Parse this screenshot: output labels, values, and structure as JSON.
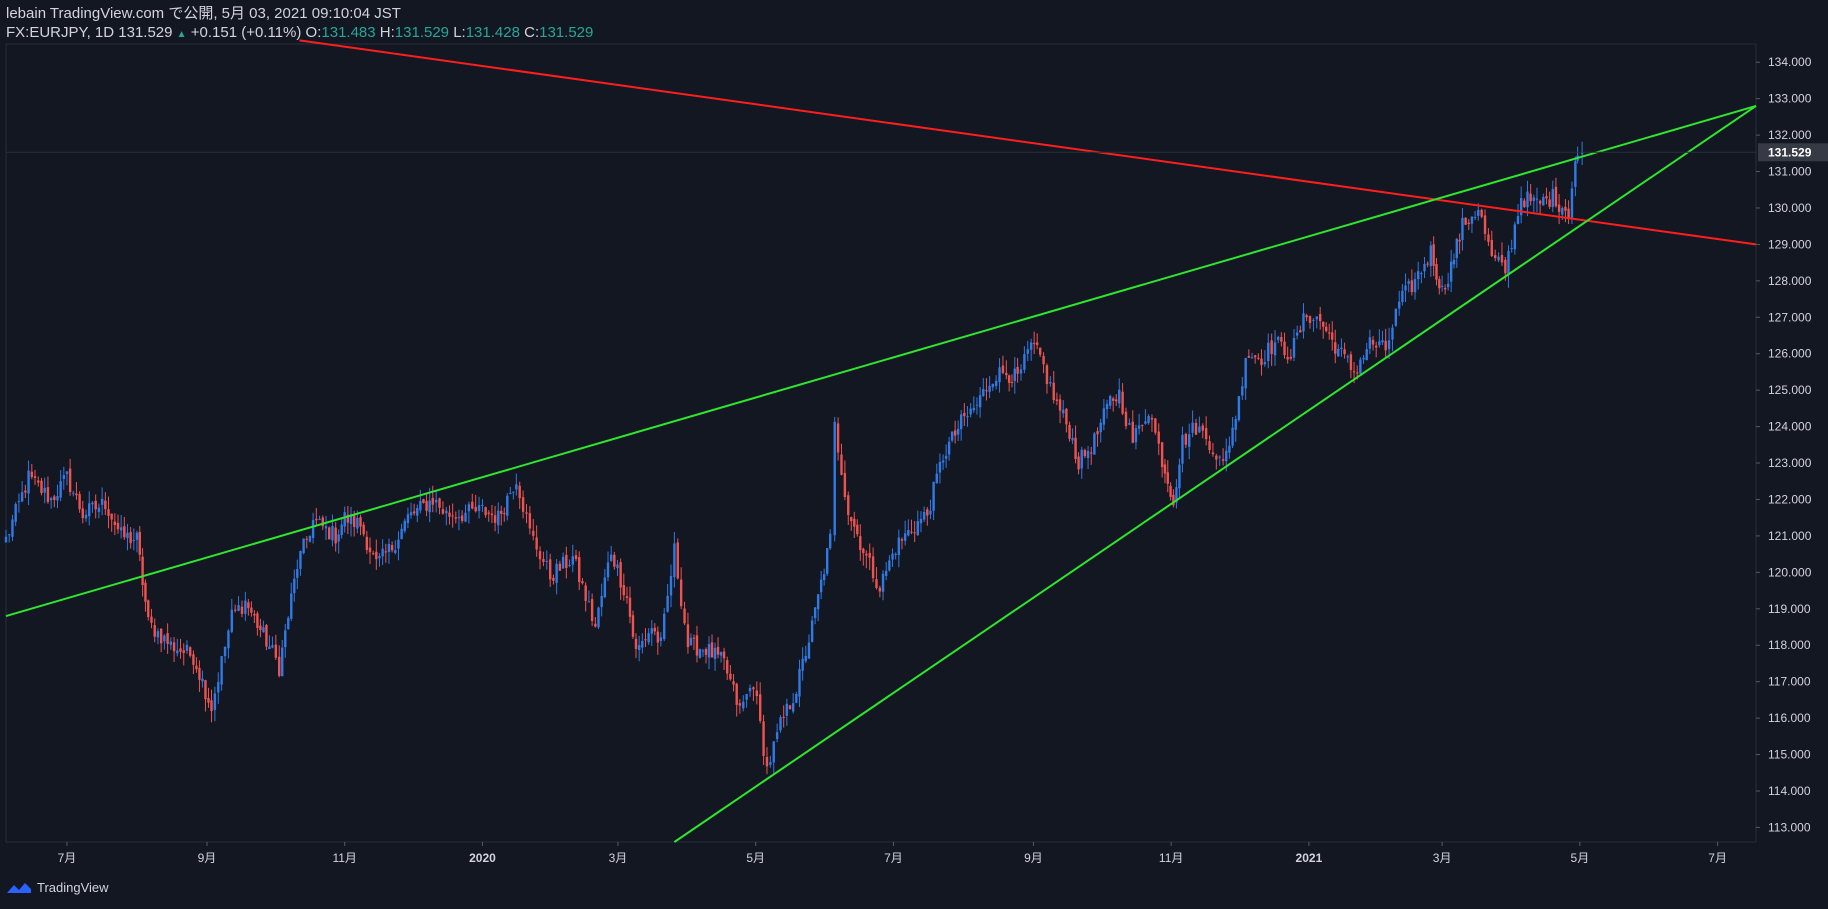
{
  "header": {
    "line1": "lebain TradingView.com で公開, 5月 03, 2021 09:10:04 JST",
    "symbol": "FX:EURJPY, 1D 131.529",
    "change": "+0.151 (+0.11%)",
    "o_label": "O:",
    "o": "131.483",
    "h_label": "H:",
    "h": "131.529",
    "l_label": "L:",
    "l": "131.428",
    "c_label": "C:",
    "c": "131.529"
  },
  "brand": {
    "name": "TradingView"
  },
  "chart_data": {
    "type": "candlestick",
    "symbol": "FX:EURJPY",
    "interval": "1D",
    "last_price": "131.529",
    "ylim": [
      112.6,
      134.5
    ],
    "y_ticks": [
      "113.000",
      "114.000",
      "115.000",
      "116.000",
      "117.000",
      "118.000",
      "119.000",
      "120.000",
      "121.000",
      "122.000",
      "123.000",
      "124.000",
      "125.000",
      "126.000",
      "127.000",
      "128.000",
      "129.000",
      "130.000",
      "131.000",
      "132.000",
      "133.000",
      "134.000"
    ],
    "x_ticks": [
      {
        "label": "7月",
        "date": "2019-07-01"
      },
      {
        "label": "9月",
        "date": "2019-09-01"
      },
      {
        "label": "11月",
        "date": "2019-11-01"
      },
      {
        "label": "2020",
        "date": "2020-01-01"
      },
      {
        "label": "3月",
        "date": "2020-03-01"
      },
      {
        "label": "5月",
        "date": "2020-05-01"
      },
      {
        "label": "7月",
        "date": "2020-07-01"
      },
      {
        "label": "9月",
        "date": "2020-09-01"
      },
      {
        "label": "11月",
        "date": "2020-11-01"
      },
      {
        "label": "2021",
        "date": "2021-01-01"
      },
      {
        "label": "3月",
        "date": "2021-03-01"
      },
      {
        "label": "5月",
        "date": "2021-05-01"
      },
      {
        "label": "7月",
        "date": "2021-07-01"
      }
    ],
    "xlim": [
      "2019-06-04",
      "2021-07-18"
    ],
    "close_path": [
      [
        "2019-06-04",
        120.9
      ],
      [
        "2019-06-14",
        122.6
      ],
      [
        "2019-06-24",
        122.0
      ],
      [
        "2019-07-01",
        122.6
      ],
      [
        "2019-07-08",
        121.6
      ],
      [
        "2019-07-18",
        121.9
      ],
      [
        "2019-07-25",
        121.0
      ],
      [
        "2019-08-01",
        120.9
      ],
      [
        "2019-08-06",
        118.6
      ],
      [
        "2019-08-16",
        118.0
      ],
      [
        "2019-08-26",
        117.7
      ],
      [
        "2019-09-03",
        116.3
      ],
      [
        "2019-09-12",
        118.8
      ],
      [
        "2019-09-18",
        119.2
      ],
      [
        "2019-09-30",
        117.8
      ],
      [
        "2019-10-03",
        117.4
      ],
      [
        "2019-10-11",
        120.2
      ],
      [
        "2019-10-18",
        121.4
      ],
      [
        "2019-10-28",
        121.0
      ],
      [
        "2019-11-01",
        121.5
      ],
      [
        "2019-11-08",
        121.3
      ],
      [
        "2019-11-15",
        120.2
      ],
      [
        "2019-11-22",
        120.7
      ],
      [
        "2019-11-29",
        121.5
      ],
      [
        "2019-12-10",
        122.0
      ],
      [
        "2019-12-16",
        121.6
      ],
      [
        "2019-12-23",
        121.6
      ],
      [
        "2020-01-01",
        121.7
      ],
      [
        "2020-01-08",
        121.5
      ],
      [
        "2020-01-16",
        122.6
      ],
      [
        "2020-01-22",
        121.1
      ],
      [
        "2020-01-31",
        119.9
      ],
      [
        "2020-02-10",
        120.4
      ],
      [
        "2020-02-20",
        118.5
      ],
      [
        "2020-02-27",
        120.6
      ],
      [
        "2020-03-05",
        119.3
      ],
      [
        "2020-03-09",
        117.8
      ],
      [
        "2020-03-16",
        118.5
      ],
      [
        "2020-03-20",
        118.0
      ],
      [
        "2020-03-26",
        120.6
      ],
      [
        "2020-04-01",
        118.0
      ],
      [
        "2020-04-09",
        117.9
      ],
      [
        "2020-04-17",
        117.5
      ],
      [
        "2020-04-24",
        116.2
      ],
      [
        "2020-04-30",
        117.0
      ],
      [
        "2020-05-06",
        114.6
      ],
      [
        "2020-05-12",
        115.8
      ],
      [
        "2020-05-19",
        116.8
      ],
      [
        "2020-05-26",
        118.5
      ],
      [
        "2020-06-03",
        120.9
      ],
      [
        "2020-06-05",
        124.0
      ],
      [
        "2020-06-11",
        121.7
      ],
      [
        "2020-06-19",
        120.4
      ],
      [
        "2020-06-25",
        119.6
      ],
      [
        "2020-07-02",
        120.7
      ],
      [
        "2020-07-09",
        121.2
      ],
      [
        "2020-07-16",
        121.6
      ],
      [
        "2020-07-23",
        123.2
      ],
      [
        "2020-07-31",
        124.1
      ],
      [
        "2020-08-07",
        124.6
      ],
      [
        "2020-08-14",
        125.4
      ],
      [
        "2020-08-20",
        125.5
      ],
      [
        "2020-08-25",
        125.3
      ],
      [
        "2020-08-31",
        126.2
      ],
      [
        "2020-09-04",
        125.9
      ],
      [
        "2020-09-10",
        124.8
      ],
      [
        "2020-09-17",
        123.9
      ],
      [
        "2020-09-21",
        123.0
      ],
      [
        "2020-09-28",
        123.6
      ],
      [
        "2020-10-05",
        124.7
      ],
      [
        "2020-10-09",
        124.9
      ],
      [
        "2020-10-15",
        123.6
      ],
      [
        "2020-10-22",
        124.5
      ],
      [
        "2020-10-28",
        123.1
      ],
      [
        "2020-11-02",
        122.0
      ],
      [
        "2020-11-06",
        123.6
      ],
      [
        "2020-11-12",
        124.0
      ],
      [
        "2020-11-18",
        123.6
      ],
      [
        "2020-11-24",
        122.9
      ],
      [
        "2020-12-01",
        124.7
      ],
      [
        "2020-12-04",
        126.0
      ],
      [
        "2020-12-11",
        125.9
      ],
      [
        "2020-12-17",
        126.3
      ],
      [
        "2020-12-24",
        126.0
      ],
      [
        "2020-12-31",
        127.1
      ],
      [
        "2021-01-06",
        126.9
      ],
      [
        "2021-01-14",
        126.1
      ],
      [
        "2021-01-21",
        125.5
      ],
      [
        "2021-01-28",
        126.3
      ],
      [
        "2021-02-04",
        126.1
      ],
      [
        "2021-02-10",
        127.4
      ],
      [
        "2021-02-17",
        128.0
      ],
      [
        "2021-02-24",
        128.8
      ],
      [
        "2021-03-01",
        127.7
      ],
      [
        "2021-03-05",
        128.4
      ],
      [
        "2021-03-10",
        129.5
      ],
      [
        "2021-03-17",
        130.0
      ],
      [
        "2021-03-23",
        128.6
      ],
      [
        "2021-03-29",
        128.3
      ],
      [
        "2021-04-05",
        130.3
      ],
      [
        "2021-04-12",
        130.1
      ],
      [
        "2021-04-19",
        130.3
      ],
      [
        "2021-04-26",
        129.9
      ],
      [
        "2021-04-29",
        131.3
      ],
      [
        "2021-04-30",
        131.4
      ],
      [
        "2021-05-02",
        131.529
      ]
    ],
    "trendlines": [
      {
        "color": "#ff1e1e",
        "from": [
          "2019-10-12",
          134.6
        ],
        "to": [
          "2021-07-18",
          129.0
        ]
      },
      {
        "color": "#2ee62e",
        "from": [
          "2019-06-04",
          118.8
        ],
        "to": [
          "2021-07-18",
          132.8
        ]
      },
      {
        "color": "#2ee62e",
        "from": [
          "2020-03-26",
          112.6
        ],
        "to": [
          "2021-07-18",
          132.8
        ]
      }
    ],
    "colors": {
      "background": "#131722",
      "up": "#2f7ae5",
      "down": "#ef5350",
      "axis_text": "#d1d4dc",
      "price_tag": "#363a45"
    }
  }
}
